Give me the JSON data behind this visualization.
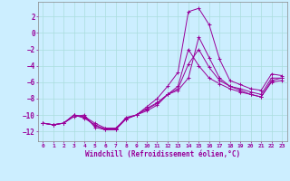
{
  "xlabel": "Windchill (Refroidissement éolien,°C)",
  "bg_color": "#cceeff",
  "grid_color": "#aadddd",
  "line_color": "#990099",
  "xlim": [
    -0.5,
    23.5
  ],
  "ylim": [
    -13.2,
    3.8
  ],
  "xticks": [
    0,
    1,
    2,
    3,
    4,
    5,
    6,
    7,
    8,
    9,
    10,
    11,
    12,
    13,
    14,
    15,
    16,
    17,
    18,
    19,
    20,
    21,
    22,
    23
  ],
  "yticks": [
    -12,
    -10,
    -8,
    -6,
    -4,
    -2,
    0,
    2
  ],
  "series": [
    [
      0,
      -11.0,
      1,
      -11.2,
      2,
      -11.0,
      3,
      -10.2,
      4,
      -10.0,
      5,
      -11.5,
      6,
      -11.8,
      7,
      -11.8,
      8,
      -10.3,
      9,
      -10.0,
      10,
      -9.0,
      11,
      -8.0,
      12,
      -6.5,
      13,
      -4.8,
      14,
      2.6,
      15,
      3.0,
      16,
      1.0,
      17,
      -3.2,
      18,
      -5.8,
      19,
      -6.3,
      20,
      -6.8,
      21,
      -7.0,
      22,
      -5.0,
      23,
      -5.2
    ],
    [
      0,
      -11.0,
      1,
      -11.2,
      2,
      -11.0,
      3,
      -10.0,
      4,
      -10.2,
      5,
      -11.0,
      6,
      -11.6,
      7,
      -11.6,
      8,
      -10.5,
      9,
      -10.0,
      10,
      -9.2,
      11,
      -8.5,
      12,
      -7.5,
      13,
      -6.5,
      14,
      -2.0,
      15,
      -4.0,
      16,
      -5.5,
      17,
      -6.2,
      18,
      -6.8,
      19,
      -7.2,
      20,
      -7.5,
      21,
      -7.8,
      22,
      -6.0,
      23,
      -5.8
    ],
    [
      0,
      -11.0,
      1,
      -11.2,
      2,
      -11.0,
      3,
      -10.0,
      4,
      -10.4,
      5,
      -11.2,
      6,
      -11.8,
      7,
      -11.8,
      8,
      -10.5,
      9,
      -10.0,
      10,
      -9.5,
      11,
      -8.8,
      12,
      -7.5,
      13,
      -7.0,
      14,
      -5.5,
      15,
      -0.5,
      16,
      -3.0,
      17,
      -5.5,
      18,
      -6.5,
      19,
      -7.0,
      20,
      -7.5,
      21,
      -7.8,
      22,
      -5.8,
      23,
      -5.5
    ]
  ],
  "x_series": [
    0,
    1,
    2,
    3,
    4,
    5,
    6,
    7,
    8,
    9,
    10,
    11,
    12,
    13,
    14,
    15,
    16,
    17,
    18,
    19,
    20,
    21,
    22,
    23
  ],
  "y_series1": [
    -11.0,
    -11.2,
    -11.0,
    -10.2,
    -10.0,
    -11.5,
    -11.8,
    -11.8,
    -10.3,
    -10.0,
    -9.0,
    -8.0,
    -6.5,
    -4.8,
    2.6,
    3.0,
    1.0,
    -3.2,
    -5.8,
    -6.3,
    -6.8,
    -7.0,
    -5.0,
    -5.2
  ],
  "y_series2": [
    -11.0,
    -11.2,
    -11.0,
    -10.0,
    -10.2,
    -11.0,
    -11.6,
    -11.6,
    -10.5,
    -10.0,
    -9.2,
    -8.5,
    -7.5,
    -6.5,
    -2.0,
    -4.0,
    -5.5,
    -6.2,
    -6.8,
    -7.2,
    -7.5,
    -7.8,
    -6.0,
    -5.8
  ],
  "y_series3": [
    -11.0,
    -11.2,
    -11.0,
    -10.0,
    -10.4,
    -11.2,
    -11.8,
    -11.8,
    -10.5,
    -10.0,
    -9.5,
    -8.8,
    -7.5,
    -7.0,
    -5.5,
    -0.5,
    -3.0,
    -5.5,
    -6.5,
    -7.0,
    -7.5,
    -7.8,
    -5.8,
    -5.5
  ],
  "y_series4": [
    -11.0,
    -11.2,
    -11.0,
    -10.0,
    -10.3,
    -11.3,
    -11.7,
    -11.7,
    -10.4,
    -10.0,
    -9.3,
    -8.6,
    -7.5,
    -6.8,
    -3.8,
    -2.0,
    -4.2,
    -5.8,
    -6.5,
    -6.8,
    -7.2,
    -7.5,
    -5.5,
    -5.5
  ]
}
